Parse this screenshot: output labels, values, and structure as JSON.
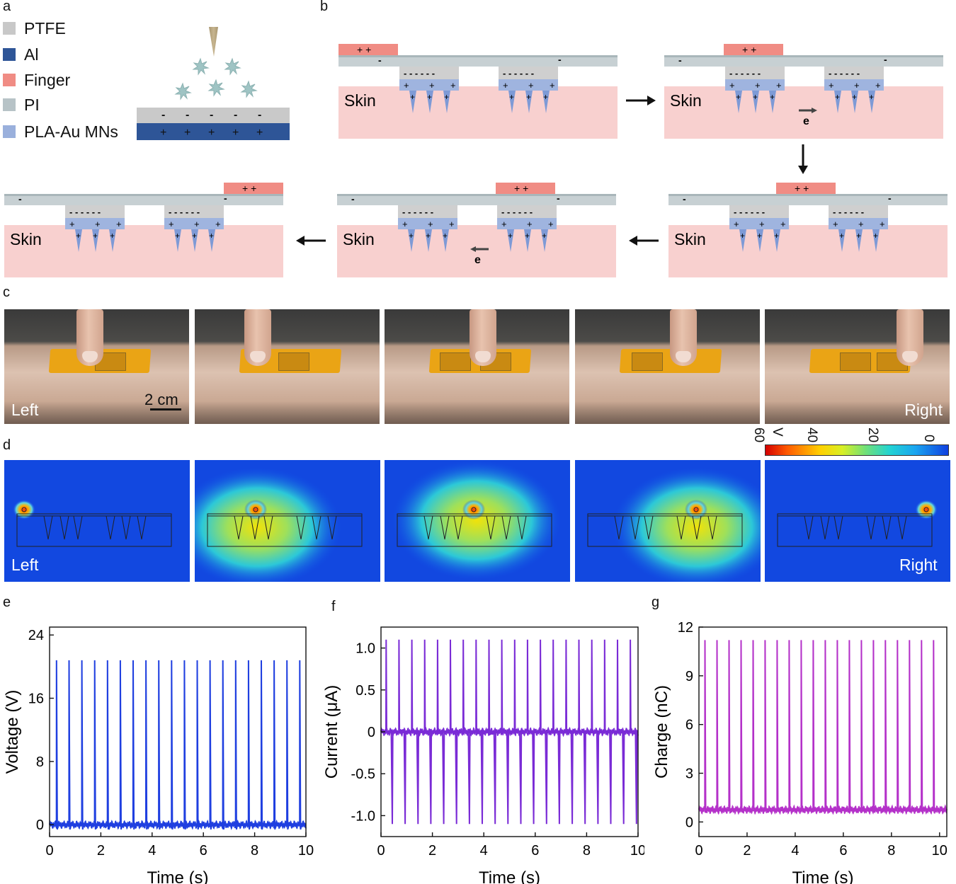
{
  "panel_labels": {
    "a": "a",
    "b": "b",
    "c": "c",
    "d": "d",
    "e": "e",
    "f": "f",
    "g": "g"
  },
  "legend": [
    {
      "label": "PTFE",
      "color": "#c8c8c8"
    },
    {
      "label": "Al",
      "color": "#2e5597"
    },
    {
      "label": "Finger",
      "color": "#f08c84"
    },
    {
      "label": "PI",
      "color": "#b7c3c7"
    },
    {
      "label": "PLA-Au MNs",
      "color": "#9ab0dc"
    }
  ],
  "diagram": {
    "skin": "Skin",
    "electron": "e",
    "plus": "+",
    "minus": "-"
  },
  "photos": {
    "left": "Left",
    "right": "Right",
    "scale": "2 cm"
  },
  "colorbar": {
    "ticks": [
      "60",
      "40",
      "20",
      "0"
    ],
    "unit": "V"
  },
  "sims": {
    "left": "Left",
    "right": "Right"
  },
  "chart_data": [
    {
      "type": "line",
      "panel": "e",
      "xlabel": "Time (s)",
      "ylabel": "Voltage (V)",
      "xlim": [
        0,
        10
      ],
      "ylim": [
        -1.5,
        25
      ],
      "xticks": [
        0,
        2,
        4,
        6,
        8,
        10
      ],
      "yticks": [
        0,
        8,
        16,
        24
      ],
      "color": "#1f3fe0",
      "series": [
        {
          "baseline": 0,
          "peak": 20.8,
          "trough": -0.6,
          "peak_times": [
            0.27,
            0.76,
            1.26,
            1.76,
            2.26,
            2.76,
            3.26,
            3.76,
            4.26,
            4.76,
            5.26,
            5.76,
            6.26,
            6.76,
            7.26,
            7.76,
            8.26,
            8.76,
            9.26,
            9.76
          ]
        }
      ]
    },
    {
      "type": "line",
      "panel": "f",
      "xlabel": "Time (s)",
      "ylabel": "Current (μA)",
      "xlim": [
        0,
        10
      ],
      "ylim": [
        -1.25,
        1.25
      ],
      "xticks": [
        0,
        2,
        4,
        6,
        8,
        10
      ],
      "yticks": [
        -1.0,
        -0.5,
        0,
        0.5,
        1.0
      ],
      "ytick_labels": [
        "-1.0",
        "-0.5",
        "0",
        "0.5",
        "1.0"
      ],
      "color": "#7a2bd6",
      "series": [
        {
          "baseline": 0,
          "peak": 1.1,
          "trough": -1.1,
          "peak_times": [
            0.2,
            0.7,
            1.2,
            1.7,
            2.2,
            2.7,
            3.2,
            3.7,
            4.2,
            4.7,
            5.2,
            5.7,
            6.2,
            6.7,
            7.2,
            7.7,
            8.2,
            8.7,
            9.2,
            9.7
          ]
        }
      ]
    },
    {
      "type": "line",
      "panel": "g",
      "xlabel": "Time (s)",
      "ylabel": "Charge (nC)",
      "xlim": [
        0,
        10.3
      ],
      "ylim": [
        -0.9,
        12
      ],
      "xticks": [
        0,
        2,
        4,
        6,
        8,
        10
      ],
      "yticks": [
        0,
        3,
        6,
        9,
        12
      ],
      "color": "#b431c9",
      "series": [
        {
          "baseline": 0.75,
          "peak": 11.2,
          "peak_times": [
            0.25,
            0.75,
            1.25,
            1.75,
            2.25,
            2.75,
            3.25,
            3.75,
            4.25,
            4.75,
            5.25,
            5.75,
            6.25,
            6.75,
            7.25,
            7.75,
            8.25,
            8.75,
            9.25,
            9.75
          ]
        }
      ]
    }
  ]
}
